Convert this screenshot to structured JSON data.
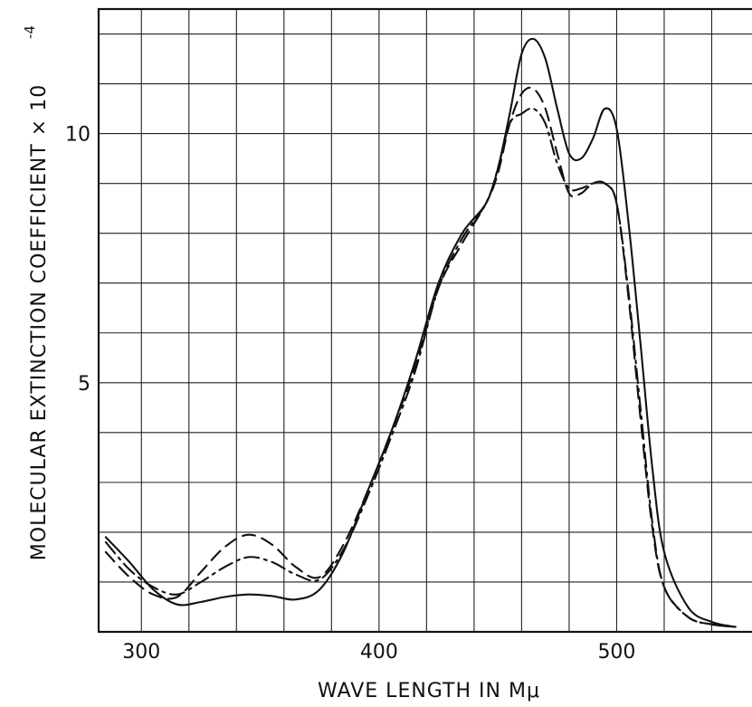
{
  "chart_data": {
    "type": "line",
    "title": "",
    "xlabel": "WAVE   LENGTH  IN  Mμ",
    "ylabel": "MOLECULAR  EXTINCTION  COEFFICIENT × 10",
    "ylabel_exponent": "-4",
    "xlim": [
      282,
      560
    ],
    "ylim": [
      0,
      12.5
    ],
    "xticks": [
      300,
      400,
      500
    ],
    "yticks": [
      5,
      10
    ],
    "grid": true,
    "series": [
      {
        "style": "solid",
        "x": [
          285,
          295,
          305,
          315,
          325,
          335,
          345,
          355,
          365,
          375,
          385,
          395,
          405,
          415,
          425,
          435,
          445,
          450,
          455,
          460,
          465,
          470,
          475,
          480,
          485,
          490,
          495,
          500,
          505,
          510,
          515,
          520,
          530,
          540,
          550
        ],
        "y": [
          1.9,
          1.4,
          0.85,
          0.55,
          0.6,
          0.7,
          0.75,
          0.72,
          0.65,
          0.85,
          1.6,
          2.8,
          4.0,
          5.4,
          7.0,
          8.0,
          8.6,
          9.3,
          10.4,
          11.6,
          11.9,
          11.5,
          10.5,
          9.6,
          9.5,
          9.9,
          10.5,
          10.1,
          8.2,
          5.8,
          3.3,
          1.6,
          0.5,
          0.2,
          0.1
        ]
      },
      {
        "style": "dashed",
        "x": [
          285,
          295,
          305,
          315,
          325,
          335,
          345,
          355,
          365,
          375,
          385,
          395,
          405,
          415,
          425,
          435,
          445,
          450,
          455,
          460,
          465,
          470,
          475,
          480,
          485,
          490,
          495,
          500,
          505,
          510,
          515,
          520,
          530,
          540,
          550
        ],
        "y": [
          1.6,
          1.1,
          0.75,
          0.7,
          1.2,
          1.7,
          1.95,
          1.75,
          1.3,
          1.1,
          1.75,
          2.8,
          4.0,
          5.3,
          6.9,
          7.8,
          8.6,
          9.2,
          10.2,
          10.8,
          10.9,
          10.5,
          9.6,
          8.8,
          8.8,
          9.0,
          9.0,
          8.6,
          6.7,
          4.3,
          2.1,
          0.9,
          0.3,
          0.15,
          0.1
        ]
      },
      {
        "style": "dash-dot",
        "x": [
          285,
          295,
          305,
          315,
          325,
          335,
          345,
          355,
          365,
          375,
          385,
          395,
          405,
          415,
          425,
          435,
          445,
          450,
          455,
          460,
          465,
          470,
          475,
          480,
          485,
          490,
          495,
          500,
          505,
          510,
          515,
          520,
          530,
          540,
          550
        ],
        "y": [
          1.8,
          1.25,
          0.9,
          0.75,
          1.0,
          1.3,
          1.5,
          1.4,
          1.15,
          1.05,
          1.65,
          2.7,
          3.9,
          5.2,
          6.9,
          7.9,
          8.6,
          9.3,
          10.2,
          10.4,
          10.5,
          10.2,
          9.4,
          8.9,
          8.9,
          9.0,
          9.0,
          8.6,
          6.8,
          4.5,
          2.2,
          0.9,
          0.3,
          0.15,
          0.1
        ]
      }
    ]
  }
}
